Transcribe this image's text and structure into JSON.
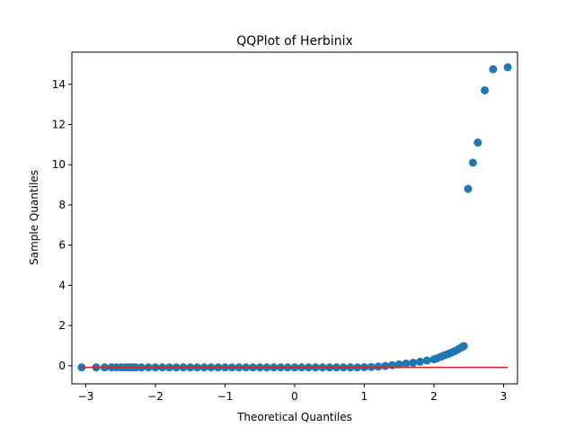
{
  "chart_data": {
    "type": "scatter",
    "title": "QQPlot of Herbinix",
    "xlabel": "Theoretical Quantiles",
    "ylabel": "Sample Quantiles",
    "xlim": [
      -3.2,
      3.2
    ],
    "ylim": [
      -0.9,
      15.6
    ],
    "xticks": [
      -3,
      -2,
      -1,
      0,
      1,
      2,
      3
    ],
    "yticks": [
      0,
      2,
      4,
      6,
      8,
      10,
      12,
      14
    ],
    "grid": false,
    "colors": {
      "points": "#1f77b4",
      "reference_line": "#d62728"
    },
    "series": [
      {
        "kind": "points",
        "x": [
          -3.06,
          -2.85,
          -2.73,
          -2.63,
          -2.56,
          -2.49,
          -2.43,
          -2.38,
          -2.33,
          -2.28,
          -2.2,
          -2.1,
          -2.0,
          -1.9,
          -1.8,
          -1.7,
          -1.6,
          -1.5,
          -1.4,
          -1.3,
          -1.2,
          -1.1,
          -1.0,
          -0.9,
          -0.8,
          -0.7,
          -0.6,
          -0.5,
          -0.4,
          -0.3,
          -0.2,
          -0.1,
          0.0,
          0.1,
          0.2,
          0.3,
          0.4,
          0.5,
          0.6,
          0.7,
          0.8,
          0.9,
          1.0,
          1.1,
          1.2,
          1.3,
          1.4,
          1.5,
          1.6,
          1.7,
          1.8,
          1.9,
          2.0,
          2.05,
          2.1,
          2.15,
          2.2,
          2.25,
          2.3,
          2.35,
          2.4,
          2.43,
          2.49,
          2.56,
          2.63,
          2.73,
          2.85,
          3.06
        ],
        "y": [
          -0.08,
          -0.08,
          -0.08,
          -0.08,
          -0.08,
          -0.08,
          -0.08,
          -0.08,
          -0.08,
          -0.08,
          -0.08,
          -0.08,
          -0.08,
          -0.08,
          -0.08,
          -0.08,
          -0.08,
          -0.08,
          -0.08,
          -0.08,
          -0.08,
          -0.08,
          -0.08,
          -0.08,
          -0.08,
          -0.08,
          -0.08,
          -0.08,
          -0.08,
          -0.08,
          -0.08,
          -0.08,
          -0.08,
          -0.08,
          -0.08,
          -0.08,
          -0.08,
          -0.08,
          -0.08,
          -0.08,
          -0.08,
          -0.08,
          -0.07,
          -0.06,
          -0.04,
          -0.01,
          0.03,
          0.07,
          0.11,
          0.15,
          0.2,
          0.26,
          0.32,
          0.38,
          0.45,
          0.52,
          0.58,
          0.65,
          0.73,
          0.82,
          0.92,
          0.98,
          8.8,
          10.1,
          11.1,
          13.7,
          14.75,
          14.85
        ]
      },
      {
        "kind": "line",
        "x": [
          -3.06,
          3.06
        ],
        "y": [
          -0.08,
          -0.08
        ]
      }
    ]
  }
}
